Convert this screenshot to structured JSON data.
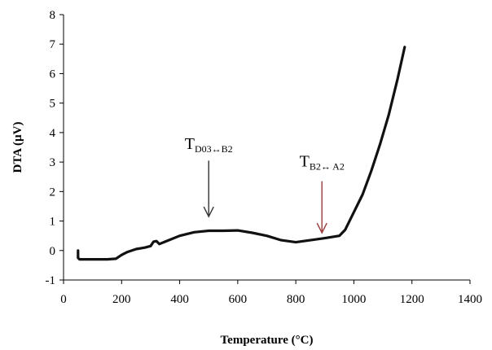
{
  "chart_data": {
    "type": "line",
    "title": "",
    "xlabel": "Temperature (°C)",
    "ylabel": "DTA (µV)",
    "xlim": [
      0,
      1400
    ],
    "ylim": [
      -1,
      8
    ],
    "xticks": [
      0,
      200,
      400,
      600,
      800,
      1000,
      1200,
      1400
    ],
    "yticks": [
      -1,
      0,
      1,
      2,
      3,
      4,
      5,
      6,
      7,
      8
    ],
    "grid": false,
    "legend": "none",
    "line_color": "#111111",
    "series": [
      {
        "x": [
          50,
          50,
          55,
          70,
          100,
          150,
          180,
          200,
          220,
          250,
          280,
          300,
          310,
          320,
          330,
          350,
          400,
          450,
          500,
          550,
          600,
          650,
          700,
          750,
          800,
          850,
          900,
          950,
          970,
          1000,
          1030,
          1060,
          1090,
          1120,
          1150,
          1175
        ],
        "y": [
          0.0,
          -0.25,
          -0.3,
          -0.3,
          -0.3,
          -0.3,
          -0.28,
          -0.15,
          -0.05,
          0.05,
          0.1,
          0.15,
          0.3,
          0.32,
          0.22,
          0.3,
          0.5,
          0.62,
          0.67,
          0.67,
          0.68,
          0.6,
          0.5,
          0.35,
          0.28,
          0.35,
          0.42,
          0.5,
          0.7,
          1.3,
          1.9,
          2.7,
          3.6,
          4.6,
          5.8,
          6.9
        ]
      }
    ],
    "annotations": [
      {
        "main": "T",
        "sub": "D03↔B2",
        "x": 500,
        "y_text": 3.45,
        "arrow_from": 3.05,
        "arrow_to": 1.15,
        "arrow_color": "#333333"
      },
      {
        "main": "T",
        "sub": "B2↔ A2",
        "x": 890,
        "y_text": 2.85,
        "arrow_from": 2.35,
        "arrow_to": 0.6,
        "arrow_color": "#9b3a3a"
      }
    ]
  }
}
